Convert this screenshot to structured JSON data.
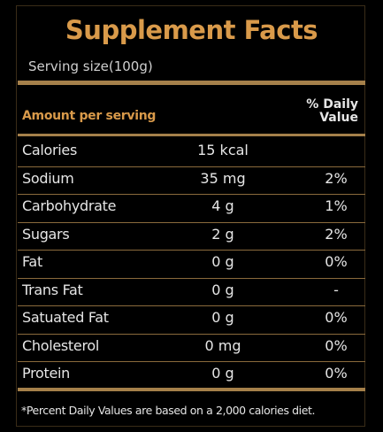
{
  "title": "Supplement Facts",
  "serving_size": "Serving size(100g)",
  "header": {
    "amount": "Amount per serving",
    "daily_value": "% Daily Value"
  },
  "rows": [
    [
      "Calories",
      "15 kcal",
      null
    ],
    [
      "Sodium",
      "35 mg",
      "2%"
    ],
    [
      "Carbohydrate",
      "4 g",
      "1%"
    ],
    [
      "Sugars",
      "2 g",
      "2%"
    ],
    [
      "Fat",
      "0 g",
      "0%"
    ],
    [
      "Trans Fat",
      "0 g",
      "-"
    ],
    [
      "Satuated Fat",
      "0 g",
      "0%"
    ],
    [
      "Cholesterol",
      "0 mg",
      "0%"
    ],
    [
      "Protein",
      "0 g",
      "0%"
    ]
  ],
  "footnote": "*Percent Daily Values are based on a 2,000 calories diet."
}
